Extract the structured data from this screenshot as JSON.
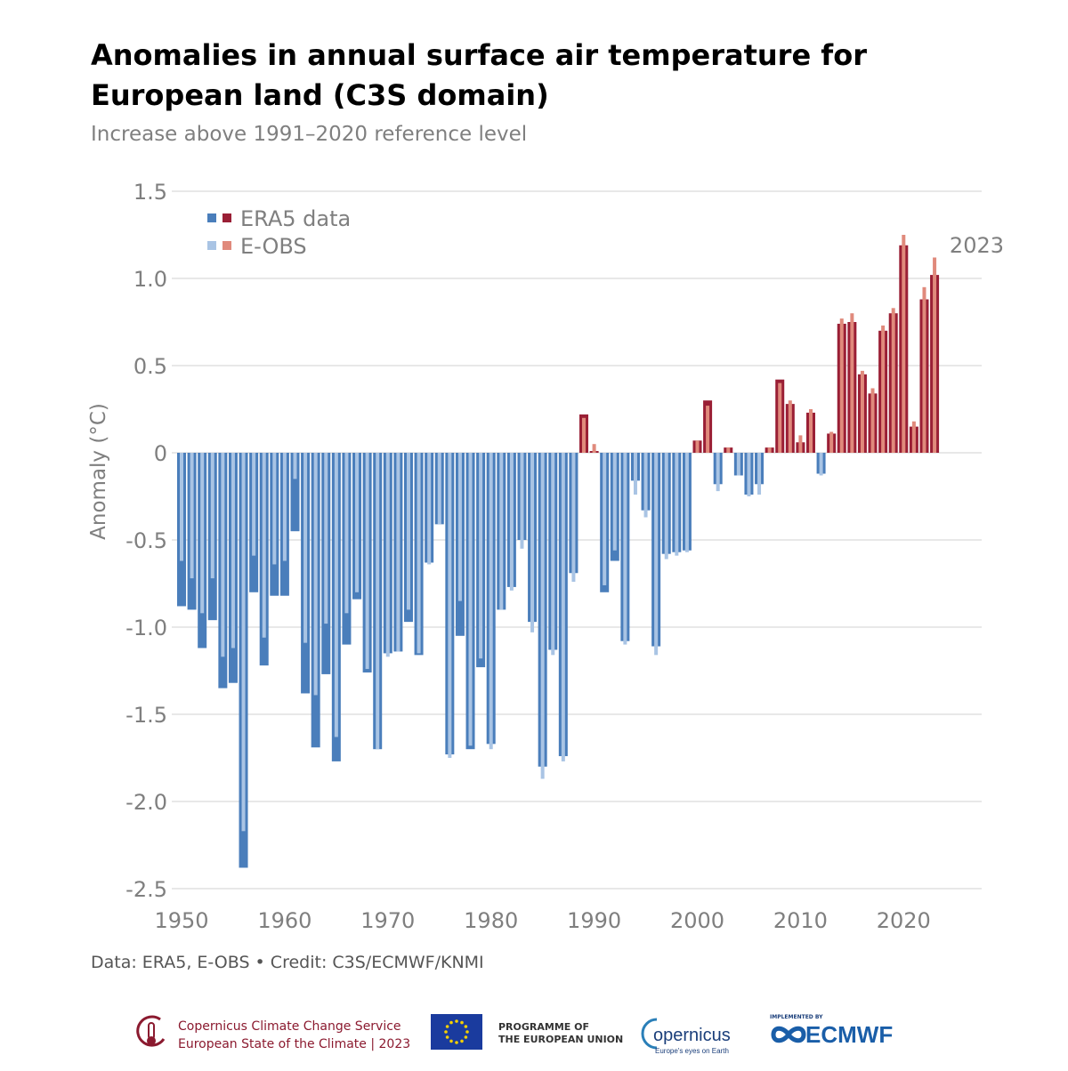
{
  "title": "Anomalies in annual surface air temperature for European land (C3S domain)",
  "subtitle": "Increase above 1991–2020 reference level",
  "credit": "Data: ERA5, E-OBS • Credit: C3S/ECMWF/KNMI",
  "colors": {
    "era5_negative": "#4a7ebb",
    "era5_positive": "#9a1f35",
    "eobs_negative": "#a9c4e4",
    "eobs_positive": "#e08a7c",
    "grid": "#d0d0d0",
    "axis_text": "#7f7f7f"
  },
  "chart_data": {
    "type": "bar",
    "ylabel": "Anomaly (°C)",
    "ylim": [
      -2.5,
      1.5
    ],
    "yticks": [
      1.5,
      1.0,
      0.5,
      0,
      -0.5,
      -1.0,
      -1.5,
      -2.0,
      -2.5
    ],
    "ytick_labels": [
      "1.5",
      "1.0",
      "0.5",
      "0",
      "-0.5",
      "-1.0",
      "-1.5",
      "-2.0",
      "-2.5"
    ],
    "xticks": [
      "1950",
      "1960",
      "1970",
      "1980",
      "1990",
      "2000",
      "2010",
      "2020"
    ],
    "grid": true,
    "legend_position": "top-left",
    "annotation": "2023",
    "years": [
      1950,
      1951,
      1952,
      1953,
      1954,
      1955,
      1956,
      1957,
      1958,
      1959,
      1960,
      1961,
      1962,
      1963,
      1964,
      1965,
      1966,
      1967,
      1968,
      1969,
      1970,
      1971,
      1972,
      1973,
      1974,
      1975,
      1976,
      1977,
      1978,
      1979,
      1980,
      1981,
      1982,
      1983,
      1984,
      1985,
      1986,
      1987,
      1988,
      1989,
      1990,
      1991,
      1992,
      1993,
      1994,
      1995,
      1996,
      1997,
      1998,
      1999,
      2000,
      2001,
      2002,
      2003,
      2004,
      2005,
      2006,
      2007,
      2008,
      2009,
      2010,
      2011,
      2012,
      2013,
      2014,
      2015,
      2016,
      2017,
      2018,
      2019,
      2020,
      2021,
      2022,
      2023
    ],
    "series": [
      {
        "name": "ERA5 data",
        "values": [
          -0.88,
          -0.9,
          -1.12,
          -0.96,
          -1.35,
          -1.32,
          -2.38,
          -0.8,
          -1.22,
          -0.82,
          -0.82,
          -0.45,
          -1.38,
          -1.69,
          -1.27,
          -1.77,
          -1.1,
          -0.84,
          -1.26,
          -1.7,
          -1.15,
          -1.14,
          -0.97,
          -1.16,
          -0.63,
          -0.41,
          -1.73,
          -1.05,
          -1.7,
          -1.23,
          -1.67,
          -0.9,
          -0.77,
          -0.5,
          -0.97,
          -1.8,
          -1.13,
          -1.74,
          -0.69,
          0.22,
          0.01,
          -0.8,
          -0.62,
          -1.08,
          -0.16,
          -0.33,
          -1.11,
          -0.58,
          -0.57,
          -0.56,
          0.07,
          0.3,
          -0.18,
          0.03,
          -0.13,
          -0.24,
          -0.18,
          0.03,
          0.42,
          0.28,
          0.06,
          0.23,
          -0.12,
          0.11,
          0.74,
          0.75,
          0.45,
          0.34,
          0.7,
          0.8,
          1.19,
          0.15,
          0.88,
          1.02
        ]
      },
      {
        "name": "E-OBS",
        "values": [
          -0.62,
          -0.72,
          -0.92,
          -0.72,
          -1.17,
          -1.12,
          -2.17,
          -0.59,
          -1.06,
          -0.64,
          -0.62,
          -0.15,
          -1.09,
          -1.39,
          -0.98,
          -1.63,
          -0.92,
          -0.8,
          -1.24,
          -1.7,
          -1.17,
          -1.14,
          -0.9,
          -1.15,
          -0.64,
          -0.41,
          -1.75,
          -0.85,
          -1.68,
          -1.18,
          -1.7,
          -0.9,
          -0.79,
          -0.55,
          -1.03,
          -1.87,
          -1.16,
          -1.77,
          -0.74,
          0.2,
          0.05,
          -0.76,
          -0.56,
          -1.1,
          -0.24,
          -0.37,
          -1.16,
          -0.61,
          -0.59,
          -0.57,
          0.07,
          0.27,
          -0.22,
          0.03,
          -0.13,
          -0.25,
          -0.24,
          0.03,
          0.4,
          0.3,
          0.1,
          0.25,
          -0.13,
          0.12,
          0.77,
          0.8,
          0.47,
          0.37,
          0.73,
          0.83,
          1.25,
          0.18,
          0.95,
          1.12
        ]
      }
    ]
  },
  "footer": {
    "c3s_line1": "Copernicus Climate Change Service",
    "c3s_line2": "European State of the Climate | 2023",
    "eu_line1": "PROGRAMME OF",
    "eu_line2": "THE EUROPEAN UNION",
    "copernicus_logo": "opernicus",
    "copernicus_tagline": "Europe's eyes on Earth",
    "ecmwf_small": "IMPLEMENTED BY",
    "ecmwf_logo": "ECMWF"
  }
}
